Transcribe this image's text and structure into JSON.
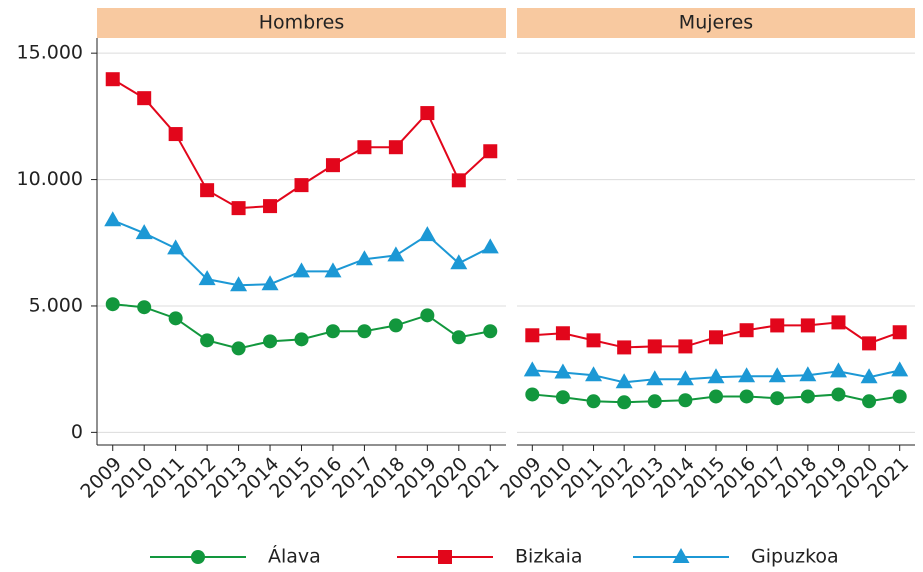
{
  "chart_data": [
    {
      "type": "line",
      "title": "Hombres",
      "x": [
        2009,
        2010,
        2011,
        2012,
        2013,
        2014,
        2015,
        2016,
        2017,
        2018,
        2019,
        2020,
        2021
      ],
      "xlim": [
        2008.5,
        2021.5
      ],
      "xticks": [
        2009,
        2010,
        2011,
        2012,
        2013,
        2014,
        2015,
        2016,
        2017,
        2018,
        2019,
        2020,
        2021
      ],
      "ylim": [
        -500,
        15600
      ],
      "yticks": [
        0,
        {
          "value": 5000,
          "label": "5.000"
        },
        {
          "value": 10000,
          "label": "10.000"
        },
        {
          "value": 15000,
          "label": "15.000"
        }
      ],
      "grid": true,
      "series": [
        {
          "name": "Álava",
          "color": "#12973d",
          "marker": "circle",
          "values": [
            5070,
            4950,
            4510,
            3640,
            3320,
            3600,
            3680,
            4000,
            4000,
            4230,
            4630,
            3760,
            4000
          ]
        },
        {
          "name": "Bizkaia",
          "color": "#e2061b",
          "marker": "square",
          "values": [
            13970,
            13220,
            11800,
            9580,
            8870,
            8950,
            9780,
            10570,
            11280,
            11280,
            12630,
            9970,
            11120
          ]
        },
        {
          "name": "Gipuzkoa",
          "color": "#1c98d5",
          "marker": "triangle",
          "values": [
            8390,
            7880,
            7280,
            6060,
            5820,
            5860,
            6370,
            6370,
            6850,
            7000,
            7800,
            6690,
            7320
          ]
        }
      ]
    },
    {
      "type": "line",
      "title": "Mujeres",
      "x": [
        2009,
        2010,
        2011,
        2012,
        2013,
        2014,
        2015,
        2016,
        2017,
        2018,
        2019,
        2020,
        2021
      ],
      "xlim": [
        2008.5,
        2021.5
      ],
      "xticks": [
        2009,
        2010,
        2011,
        2012,
        2013,
        2014,
        2015,
        2016,
        2017,
        2018,
        2019,
        2020,
        2021
      ],
      "ylim": [
        -500,
        15600
      ],
      "yticks": [
        0,
        5000,
        10000,
        15000
      ],
      "grid": true,
      "series": [
        {
          "name": "Álava",
          "color": "#12973d",
          "marker": "circle",
          "values": [
            1500,
            1390,
            1230,
            1190,
            1230,
            1270,
            1420,
            1420,
            1350,
            1420,
            1500,
            1230,
            1420
          ]
        },
        {
          "name": "Bizkaia",
          "color": "#e2061b",
          "marker": "square",
          "values": [
            3840,
            3920,
            3640,
            3360,
            3400,
            3400,
            3760,
            4040,
            4230,
            4230,
            4350,
            3520,
            3960
          ]
        },
        {
          "name": "Gipuzkoa",
          "color": "#1c98d5",
          "marker": "triangle",
          "values": [
            2450,
            2370,
            2260,
            1980,
            2100,
            2100,
            2180,
            2220,
            2220,
            2260,
            2410,
            2180,
            2450
          ]
        }
      ]
    }
  ]
}
